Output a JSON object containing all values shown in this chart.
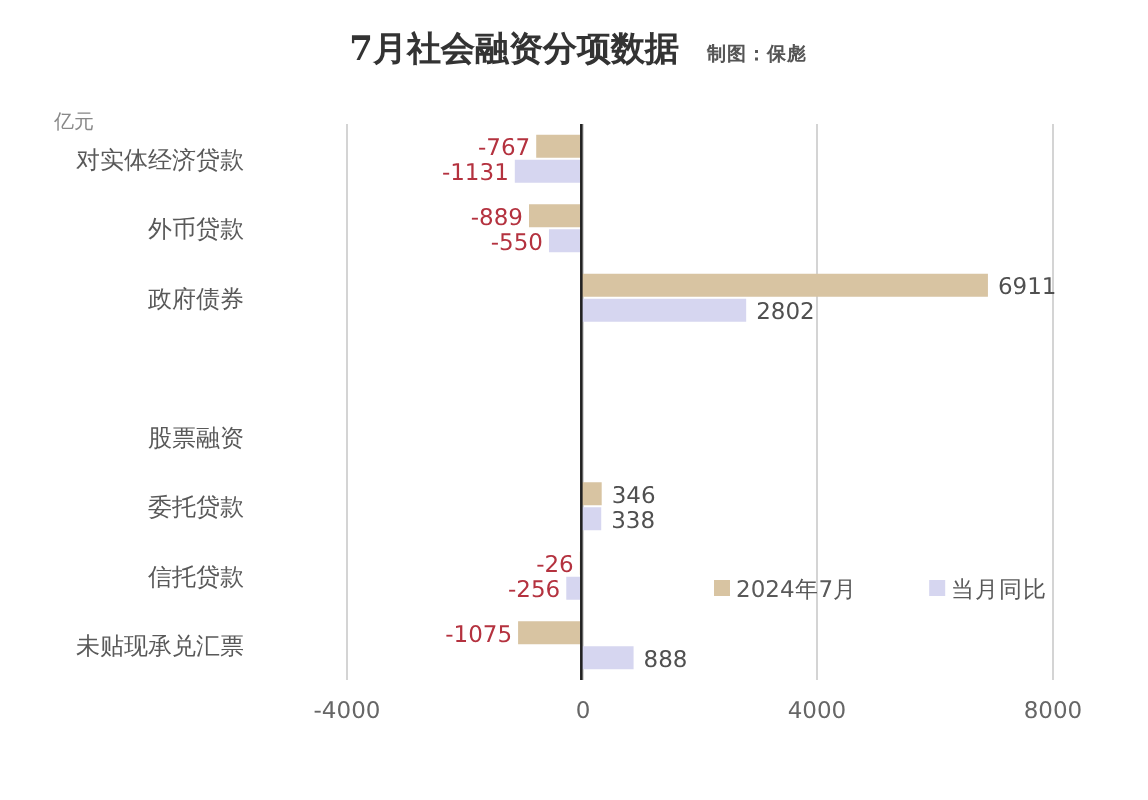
{
  "chart_data": {
    "type": "bar",
    "orientation": "horizontal",
    "title": "7月社会融资分项数据",
    "subtitle": "制图：保彪",
    "annotations": [
      "亿元"
    ],
    "categories": [
      "对实体经济贷款",
      "外币贷款",
      "政府债券",
      null,
      "股票融资",
      "委托贷款",
      "信托贷款",
      "未贴现承兑汇票"
    ],
    "series": [
      {
        "name": "2024年7月",
        "color": "#d8c4a2",
        "values": [
          -767,
          -889,
          6911,
          null,
          null,
          346,
          -26,
          -1075
        ]
      },
      {
        "name": "当月同比",
        "color": "#d6d6f0",
        "values": [
          -1131,
          -550,
          2802,
          null,
          null,
          338,
          -256,
          888
        ]
      }
    ],
    "xlim": [
      -4000,
      8000
    ],
    "xticks": [
      -4000,
      0,
      4000,
      8000
    ],
    "grid": "x",
    "legend": "bottom right",
    "data_labels": true
  }
}
